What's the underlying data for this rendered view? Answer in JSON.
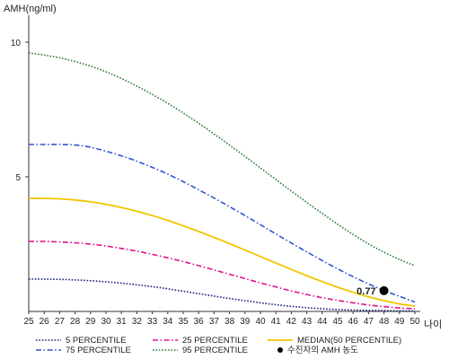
{
  "chart_data": {
    "type": "line",
    "ylabel": "AMH(ng/ml)",
    "xlabel": "나이",
    "x": [
      25,
      26,
      27,
      28,
      29,
      30,
      31,
      32,
      33,
      34,
      35,
      36,
      37,
      38,
      39,
      40,
      41,
      42,
      43,
      44,
      45,
      46,
      47,
      48,
      49,
      50
    ],
    "xlim": [
      25,
      50
    ],
    "ylim": [
      0,
      11
    ],
    "yticks": [
      5,
      10
    ],
    "grid": false,
    "series": [
      {
        "name": "5 PERCENTILE",
        "color": "#1a237e",
        "dash": "dotted",
        "values": [
          1.2,
          1.2,
          1.19,
          1.17,
          1.14,
          1.1,
          1.05,
          0.99,
          0.92,
          0.84,
          0.75,
          0.66,
          0.57,
          0.48,
          0.4,
          0.32,
          0.25,
          0.19,
          0.14,
          0.1,
          0.07,
          0.05,
          0.04,
          0.03,
          0.02,
          0.02
        ]
      },
      {
        "name": "25 PERCENTILE",
        "color": "#e0148c",
        "dash": "dashdot",
        "values": [
          2.6,
          2.6,
          2.58,
          2.55,
          2.5,
          2.43,
          2.34,
          2.24,
          2.12,
          1.99,
          1.85,
          1.7,
          1.54,
          1.38,
          1.22,
          1.06,
          0.91,
          0.76,
          0.63,
          0.51,
          0.41,
          0.32,
          0.24,
          0.18,
          0.13,
          0.1
        ]
      },
      {
        "name": "MEDIAN(50 PERCENTILE)",
        "color": "#f2c500",
        "dash": "solid",
        "values": [
          4.2,
          4.2,
          4.18,
          4.14,
          4.07,
          3.98,
          3.86,
          3.72,
          3.56,
          3.38,
          3.18,
          2.97,
          2.75,
          2.52,
          2.28,
          2.04,
          1.8,
          1.56,
          1.33,
          1.11,
          0.9,
          0.71,
          0.54,
          0.4,
          0.28,
          0.2
        ]
      },
      {
        "name": "75 PERCENTILE",
        "color": "#3355cc",
        "dash": "dashdot",
        "values": [
          6.2,
          6.2,
          6.2,
          6.18,
          6.1,
          5.95,
          5.78,
          5.58,
          5.35,
          5.1,
          4.82,
          4.52,
          4.21,
          3.89,
          3.56,
          3.22,
          2.88,
          2.54,
          2.21,
          1.89,
          1.58,
          1.29,
          1.02,
          0.78,
          0.56,
          0.35
        ]
      },
      {
        "name": "95 PERCENTILE",
        "color": "#2e7d32",
        "dash": "dotted",
        "values": [
          9.6,
          9.52,
          9.42,
          9.28,
          9.11,
          8.9,
          8.65,
          8.37,
          8.06,
          7.73,
          7.37,
          6.99,
          6.59,
          6.18,
          5.76,
          5.33,
          4.9,
          4.47,
          4.05,
          3.64,
          3.24,
          2.86,
          2.51,
          2.2,
          1.93,
          1.7
        ]
      }
    ],
    "highlight_point": {
      "x": 48,
      "y": 0.77,
      "label": "0.77"
    },
    "legend": {
      "placement": "bottom",
      "point_label": "수진자의 AMH 농도"
    }
  }
}
